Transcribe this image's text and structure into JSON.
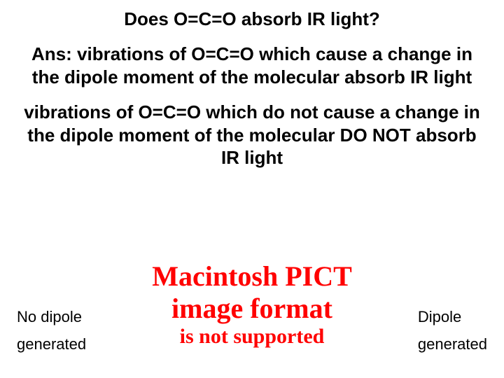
{
  "title": "Does O=C=O absorb IR light?",
  "para1": "Ans:  vibrations of O=C=O which cause a change in the dipole moment of the molecular absorb IR light",
  "para2": "vibrations of O=C=O which do not cause a change in the dipole moment of the molecular DO NOT absorb IR light",
  "ghost": {
    "line1": "Macintosh PICT",
    "line2": "image format",
    "line3": "is not supported",
    "color": "#ff0000"
  },
  "left": {
    "line1": "No dipole",
    "line2": "generated"
  },
  "right": {
    "line1": "Dipole",
    "line2": "generated"
  },
  "colors": {
    "background": "#ffffff",
    "text": "#000000"
  }
}
